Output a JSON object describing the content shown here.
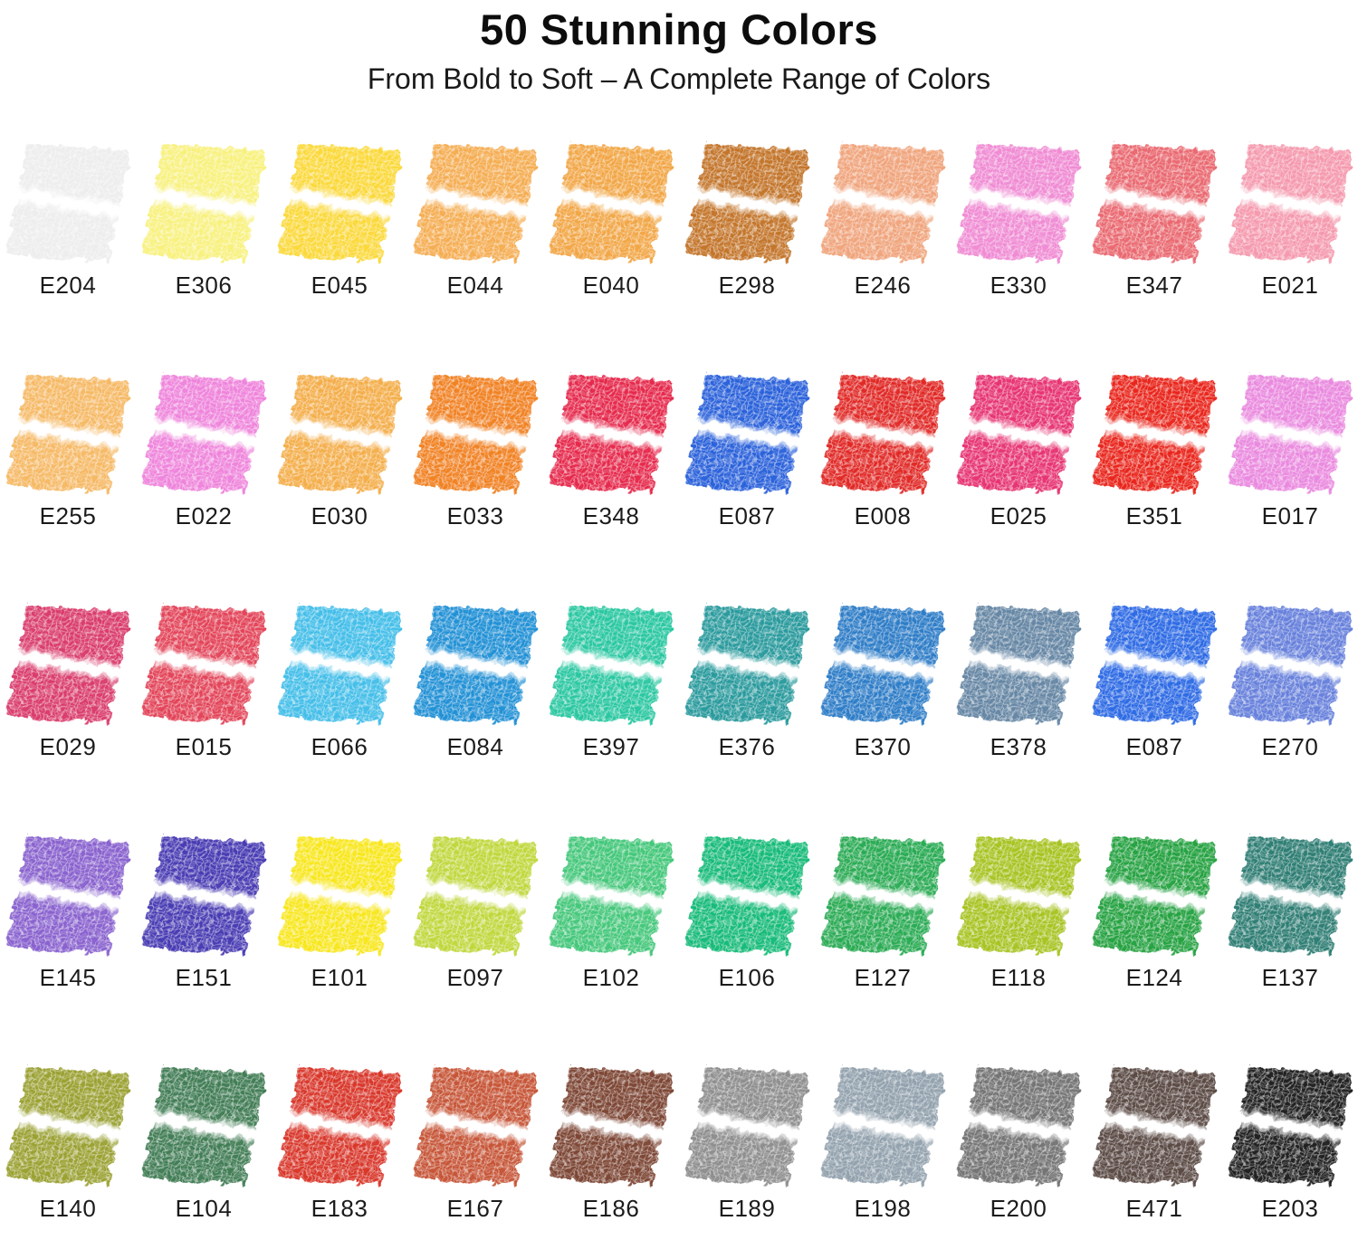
{
  "header": {
    "title": "50 Stunning Colors",
    "subtitle": "From Bold to Soft – A Complete Range of Colors"
  },
  "colors": {
    "background": "#ffffff",
    "title_text": "#0d0d0d",
    "subtitle_text": "#1a1a1a",
    "label_text": "#1b1b1b"
  },
  "palette": {
    "swatch_count": 50,
    "rows": [
      [
        {
          "code": "E204",
          "color": "#ededed"
        },
        {
          "code": "E306",
          "color": "#f8f17e"
        },
        {
          "code": "E045",
          "color": "#fbd93a"
        },
        {
          "code": "E044",
          "color": "#f5ae53"
        },
        {
          "code": "E040",
          "color": "#f2a746"
        },
        {
          "code": "E298",
          "color": "#c4762a"
        },
        {
          "code": "E246",
          "color": "#f0a57d"
        },
        {
          "code": "E330",
          "color": "#f08cd4"
        },
        {
          "code": "E347",
          "color": "#ea6a72"
        },
        {
          "code": "E021",
          "color": "#f59aae"
        }
      ],
      [
        {
          "code": "E255",
          "color": "#f6ba66"
        },
        {
          "code": "E022",
          "color": "#ef85dc"
        },
        {
          "code": "E030",
          "color": "#f4af4c"
        },
        {
          "code": "E033",
          "color": "#f18324"
        },
        {
          "code": "E348",
          "color": "#e62a4e"
        },
        {
          "code": "E087",
          "color": "#2c63db"
        },
        {
          "code": "E008",
          "color": "#e12b28"
        },
        {
          "code": "E025",
          "color": "#e73473"
        },
        {
          "code": "E351",
          "color": "#e9271c"
        },
        {
          "code": "E017",
          "color": "#ea8adf"
        }
      ],
      [
        {
          "code": "E029",
          "color": "#da3d6e"
        },
        {
          "code": "E015",
          "color": "#e3455a"
        },
        {
          "code": "E066",
          "color": "#44bfe9"
        },
        {
          "code": "E084",
          "color": "#2292d6"
        },
        {
          "code": "E397",
          "color": "#2bc8a2"
        },
        {
          "code": "E376",
          "color": "#2a9b9e"
        },
        {
          "code": "E370",
          "color": "#2e7ec8"
        },
        {
          "code": "E378",
          "color": "#6687a5"
        },
        {
          "code": "E087",
          "color": "#2e6ce5"
        },
        {
          "code": "E270",
          "color": "#6781dc"
        }
      ],
      [
        {
          "code": "E145",
          "color": "#8a63cf"
        },
        {
          "code": "E151",
          "color": "#4a3cb4"
        },
        {
          "code": "E101",
          "color": "#f8e71f"
        },
        {
          "code": "E097",
          "color": "#c1d83e"
        },
        {
          "code": "E102",
          "color": "#45c87b"
        },
        {
          "code": "E106",
          "color": "#18bc7a"
        },
        {
          "code": "E127",
          "color": "#2bac55"
        },
        {
          "code": "E118",
          "color": "#a8c422"
        },
        {
          "code": "E124",
          "color": "#25a342"
        },
        {
          "code": "E137",
          "color": "#2f7f75"
        }
      ],
      [
        {
          "code": "E140",
          "color": "#9ba233"
        },
        {
          "code": "E104",
          "color": "#427e56"
        },
        {
          "code": "E183",
          "color": "#d9382c"
        },
        {
          "code": "E167",
          "color": "#c75637"
        },
        {
          "code": "E186",
          "color": "#7e4634"
        },
        {
          "code": "E189",
          "color": "#8f8f8f"
        },
        {
          "code": "E198",
          "color": "#93a2ae"
        },
        {
          "code": "E200",
          "color": "#747474"
        },
        {
          "code": "E471",
          "color": "#5c4b45"
        },
        {
          "code": "E203",
          "color": "#202020"
        }
      ]
    ]
  }
}
